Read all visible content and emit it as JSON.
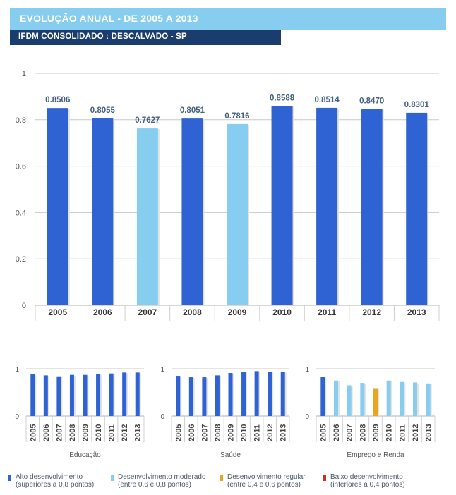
{
  "header": {
    "title": "EVOLUÇÃO ANUAL - DE 2005 A 2013",
    "subtitle": "IFDM CONSOLIDADO : DESCALVADO - SP"
  },
  "colors": {
    "alto": "#2f62d3",
    "moderado": "#87cdf0",
    "regular": "#e9a51f",
    "baixo": "#d9281d",
    "grid": "#c8c8c8",
    "label": "#44607f"
  },
  "chart_data": [
    {
      "id": "main",
      "type": "bar",
      "title": "",
      "xlabel": "",
      "ylabel": "",
      "categories": [
        "2005",
        "2006",
        "2007",
        "2008",
        "2009",
        "2010",
        "2011",
        "2012",
        "2013"
      ],
      "values": [
        0.8506,
        0.8055,
        0.7627,
        0.8051,
        0.7816,
        0.8588,
        0.8514,
        0.847,
        0.8301
      ],
      "data_labels": [
        "0.8506",
        "0.8055",
        "0.7627",
        "0.8051",
        "0.7816",
        "0.8588",
        "0.8514",
        "0.8470",
        "0.8301"
      ],
      "levels": [
        "alto",
        "alto",
        "moderado",
        "alto",
        "moderado",
        "alto",
        "alto",
        "alto",
        "alto"
      ],
      "ylim": [
        0,
        1
      ],
      "yticks": [
        "0",
        "0.2",
        "0.4",
        "0.6",
        "0.8",
        "1"
      ],
      "ytick_values": [
        0,
        0.2,
        0.4,
        0.6,
        0.8,
        1
      ],
      "grid": true
    },
    {
      "id": "educacao",
      "type": "bar",
      "xlabel": "Educação",
      "categories": [
        "2005",
        "2006",
        "2007",
        "2008",
        "2009",
        "2010",
        "2011",
        "2012",
        "2013"
      ],
      "values": [
        0.88,
        0.86,
        0.84,
        0.87,
        0.87,
        0.89,
        0.9,
        0.92,
        0.92
      ],
      "levels": [
        "alto",
        "alto",
        "alto",
        "alto",
        "alto",
        "alto",
        "alto",
        "alto",
        "alto"
      ],
      "ylim": [
        0,
        1
      ],
      "yticks": [
        "0",
        "1"
      ],
      "ytick_values": [
        0,
        1
      ],
      "grid": true
    },
    {
      "id": "saude",
      "type": "bar",
      "xlabel": "Saúde",
      "categories": [
        "2005",
        "2006",
        "2007",
        "2008",
        "2009",
        "2010",
        "2011",
        "2012",
        "2013"
      ],
      "values": [
        0.85,
        0.82,
        0.82,
        0.86,
        0.91,
        0.94,
        0.95,
        0.94,
        0.93
      ],
      "levels": [
        "alto",
        "alto",
        "alto",
        "alto",
        "alto",
        "alto",
        "alto",
        "alto",
        "alto"
      ],
      "ylim": [
        0,
        1
      ],
      "yticks": [
        "0",
        "1"
      ],
      "ytick_values": [
        0,
        1
      ],
      "grid": true
    },
    {
      "id": "emprego",
      "type": "bar",
      "xlabel": "Emprego e Renda",
      "categories": [
        "2005",
        "2006",
        "2007",
        "2008",
        "2009",
        "2010",
        "2011",
        "2012",
        "2013"
      ],
      "values": [
        0.83,
        0.75,
        0.65,
        0.7,
        0.59,
        0.75,
        0.72,
        0.71,
        0.69
      ],
      "levels": [
        "alto",
        "moderado",
        "moderado",
        "moderado",
        "regular",
        "moderado",
        "moderado",
        "moderado",
        "moderado"
      ],
      "ylim": [
        0,
        1
      ],
      "yticks": [
        "0",
        "1"
      ],
      "ytick_values": [
        0,
        1
      ],
      "grid": true
    }
  ],
  "legend": [
    {
      "key": "alto",
      "line1": "Alto desenvolvimento",
      "line2": "(superiores a 0,8 pontos)"
    },
    {
      "key": "moderado",
      "line1": "Desenvolvimento moderado",
      "line2": "(entre 0,6 e 0,8 pontos)"
    },
    {
      "key": "regular",
      "line1": "Desenvolvimento regular",
      "line2": "(entre 0,4 e 0,6 pontos)"
    },
    {
      "key": "baixo",
      "line1": "Baixo desenvolvimento",
      "line2": "(inferiores a 0,4 pontos)"
    }
  ]
}
